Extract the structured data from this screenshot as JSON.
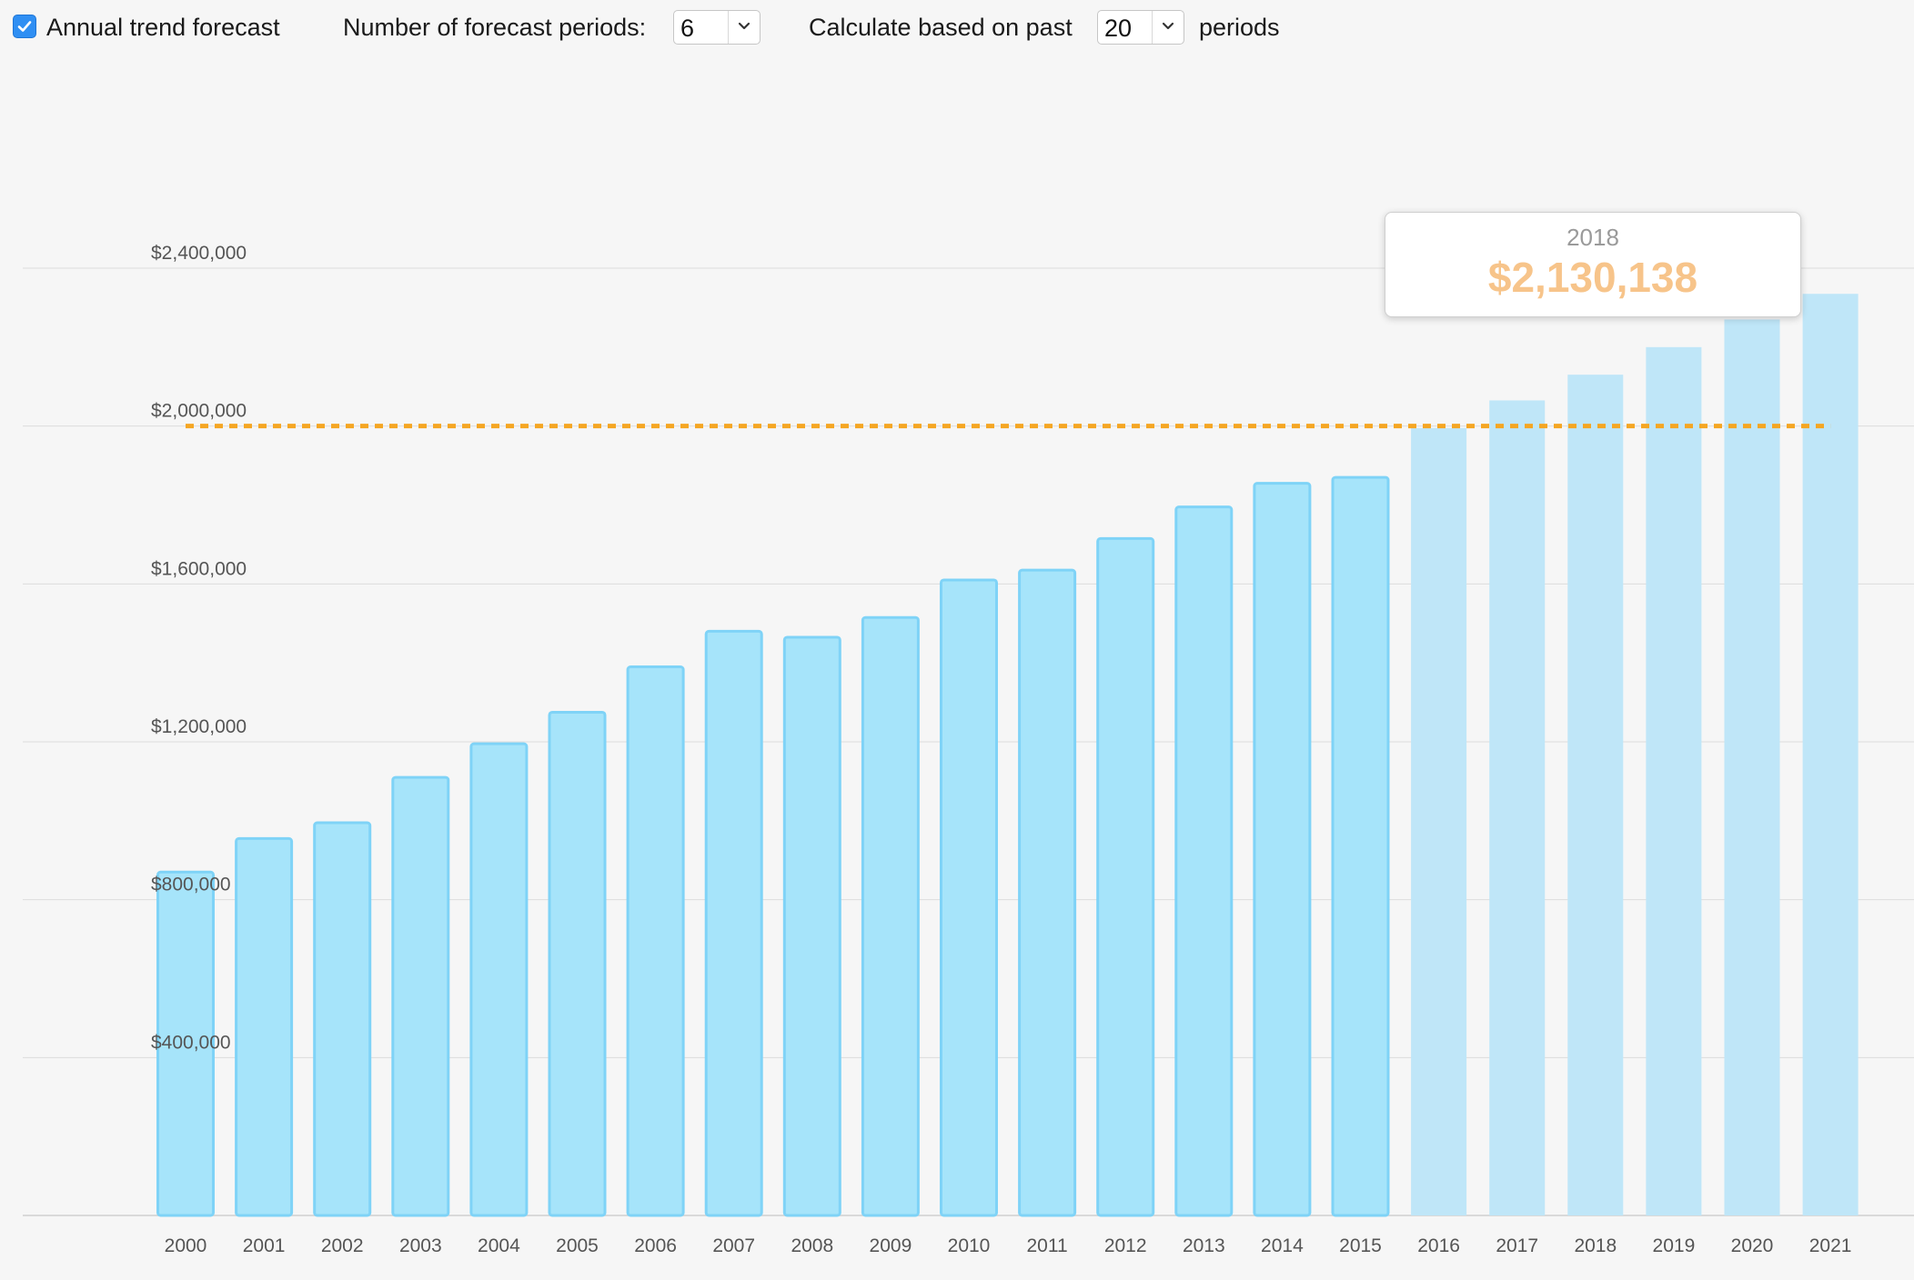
{
  "toolbar": {
    "annual_trend_label": "Annual trend forecast",
    "annual_trend_checked": true,
    "forecast_periods_label": "Number of forecast periods:",
    "forecast_periods_value": "6",
    "based_on_label": "Calculate based on past",
    "based_on_value": "20",
    "periods_label": "periods"
  },
  "tooltip": {
    "year": "2018",
    "value": "$2,130,138"
  },
  "colors": {
    "actual_bar": "#a6e4fa",
    "actual_bar_border": "#7fd3f7",
    "forecast_bar": "#bfe6f8",
    "target_line": "#f5a623",
    "tooltip_value": "#f7c48a",
    "checkbox": "#2f8ff3"
  },
  "chart_data": {
    "type": "bar",
    "categories": [
      "2000",
      "2001",
      "2002",
      "2003",
      "2004",
      "2005",
      "2006",
      "2007",
      "2008",
      "2009",
      "2010",
      "2011",
      "2012",
      "2013",
      "2014",
      "2015",
      "2016",
      "2017",
      "2018",
      "2019",
      "2020",
      "2021"
    ],
    "values": [
      870000,
      955000,
      995000,
      1110000,
      1195000,
      1275000,
      1390000,
      1480000,
      1465000,
      1515000,
      1610000,
      1635000,
      1715000,
      1795000,
      1855000,
      1870000,
      1995000,
      2065000,
      2130138,
      2200000,
      2270000,
      2335000
    ],
    "forecast_start_index": 16,
    "yticks": [
      400000,
      800000,
      1200000,
      1600000,
      2000000,
      2400000
    ],
    "ytick_labels": [
      "$400,000",
      "$800,000",
      "$1,200,000",
      "$1,600,000",
      "$2,000,000",
      "$2,400,000"
    ],
    "ylim": [
      0,
      2400000
    ],
    "target_line_value": 2000000,
    "title": "",
    "xlabel": "",
    "ylabel": "",
    "grid": true
  }
}
